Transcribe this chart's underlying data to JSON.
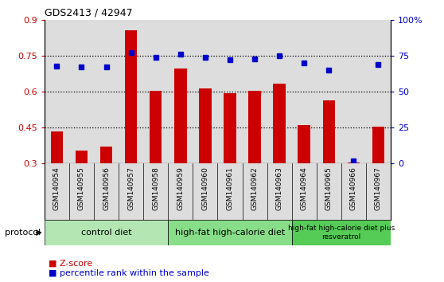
{
  "title": "GDS2413 / 42947",
  "samples": [
    "GSM140954",
    "GSM140955",
    "GSM140956",
    "GSM140957",
    "GSM140958",
    "GSM140959",
    "GSM140960",
    "GSM140961",
    "GSM140962",
    "GSM140963",
    "GSM140964",
    "GSM140965",
    "GSM140966",
    "GSM140967"
  ],
  "zscore": [
    0.435,
    0.355,
    0.37,
    0.855,
    0.605,
    0.695,
    0.615,
    0.595,
    0.605,
    0.635,
    0.46,
    0.565,
    0.305,
    0.455
  ],
  "percentile": [
    68,
    67,
    67,
    77,
    74,
    76,
    74,
    72,
    73,
    75,
    70,
    65,
    2,
    69
  ],
  "bar_color": "#cc0000",
  "dot_color": "#0000cc",
  "ylim_left": [
    0.3,
    0.9
  ],
  "ylim_right": [
    0,
    100
  ],
  "yticks_left": [
    0.3,
    0.45,
    0.6,
    0.75,
    0.9
  ],
  "ytick_labels_left": [
    "0.3",
    "0.45",
    "0.6",
    "0.75",
    "0.9"
  ],
  "yticks_right": [
    0,
    25,
    50,
    75,
    100
  ],
  "ytick_labels_right": [
    "0",
    "25",
    "50",
    "75",
    "100%"
  ],
  "hlines": [
    0.45,
    0.6,
    0.75
  ],
  "group_info": [
    {
      "label": "control diet",
      "start": 0,
      "end": 4,
      "color": "#aaddaa"
    },
    {
      "label": "high-fat high-calorie diet",
      "start": 5,
      "end": 9,
      "color": "#88cc88"
    },
    {
      "label": "high-fat high-calorie diet plus\nresveratrol",
      "start": 10,
      "end": 13,
      "color": "#44bb44"
    }
  ],
  "protocol_label": "protocol",
  "legend_zscore": "Z-score",
  "legend_percentile": "percentile rank within the sample",
  "plot_bg": "#dddddd",
  "fig_bg": "#ffffff",
  "bar_width": 0.5
}
